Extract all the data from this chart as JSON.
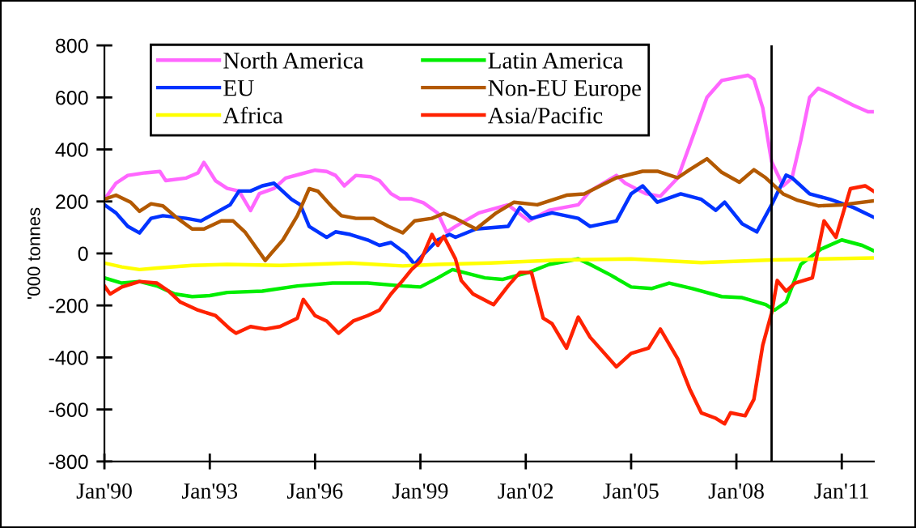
{
  "chart_data": {
    "type": "line",
    "ylabel": "'000 tonnes",
    "xlim": [
      "1990-01",
      "2011-12"
    ],
    "xticks": [
      {
        "value": "1990-01",
        "label": "Jan'90"
      },
      {
        "value": "1993-01",
        "label": "Jan'93"
      },
      {
        "value": "1996-01",
        "label": "Jan'96"
      },
      {
        "value": "1999-01",
        "label": "Jan'99"
      },
      {
        "value": "2002-01",
        "label": "Jan'02"
      },
      {
        "value": "2005-01",
        "label": "Jan'05"
      },
      {
        "value": "2008-01",
        "label": "Jan'08"
      },
      {
        "value": "2011-01",
        "label": "Jan'11"
      }
    ],
    "ylim": [
      -800,
      800
    ],
    "yticks": [
      -800,
      -600,
      -400,
      -200,
      0,
      200,
      400,
      600,
      800
    ],
    "grid": false,
    "legend": "top left",
    "marker": "none",
    "line_style": "solid",
    "ref_lines": [
      {
        "axis": "x",
        "value": "2009-01",
        "color": "#000000"
      }
    ],
    "series": [
      {
        "name": "North America",
        "color": "#ff66ff",
        "x": [
          "1990-01",
          "1990-05",
          "1990-09",
          "1991-03",
          "1991-08",
          "1991-10",
          "1992-05",
          "1992-09",
          "1992-11",
          "1993-03",
          "1993-07",
          "1993-11",
          "1994-03",
          "1994-06",
          "1994-11",
          "1995-03",
          "1995-08",
          "1996-01",
          "1996-05",
          "1996-08",
          "1996-11",
          "1997-03",
          "1997-08",
          "1997-11",
          "1998-03",
          "1998-06",
          "1998-10",
          "1999-02",
          "1999-07",
          "1999-10",
          "2000-01",
          "2000-09",
          "2001-07",
          "2002-02",
          "2002-09",
          "2003-07",
          "2003-11",
          "2004-08",
          "2004-11",
          "2005-06",
          "2005-11",
          "2006-05",
          "2006-09",
          "2007-03",
          "2007-08",
          "2008-05",
          "2008-07",
          "2008-10",
          "2009-01",
          "2009-05",
          "2009-08",
          "2009-11",
          "2010-02",
          "2010-05",
          "2010-09",
          "2011-05",
          "2011-10",
          "2011-12"
        ],
        "values": [
          208,
          270,
          300,
          310,
          315,
          280,
          290,
          310,
          350,
          280,
          250,
          240,
          165,
          230,
          250,
          290,
          305,
          320,
          315,
          300,
          260,
          300,
          295,
          280,
          230,
          210,
          210,
          195,
          155,
          82,
          104,
          156,
          187,
          125,
          166,
          187,
          240,
          300,
          270,
          230,
          220,
          290,
          415,
          600,
          665,
          685,
          670,
          560,
          353,
          260,
          290,
          435,
          600,
          635,
          615,
          570,
          545,
          545
        ]
      },
      {
        "name": "Latin America",
        "color": "#00ee00",
        "x": [
          "1990-01",
          "1990-07",
          "1991-01",
          "1991-07",
          "1992-01",
          "1992-07",
          "1993-01",
          "1993-07",
          "1994-07",
          "1995-07",
          "1996-07",
          "1997-07",
          "1998-07",
          "1999-01",
          "1999-07",
          "1999-12",
          "2000-11",
          "2001-05",
          "2002-02",
          "2002-09",
          "2003-07",
          "2003-11",
          "2004-06",
          "2005-01",
          "2005-08",
          "2006-02",
          "2006-10",
          "2007-08",
          "2008-03",
          "2008-11",
          "2009-02",
          "2009-06",
          "2009-11",
          "2010-06",
          "2011-01",
          "2011-08",
          "2011-12"
        ],
        "values": [
          -94,
          -114,
          -108,
          -125,
          -156,
          -166,
          -162,
          -150,
          -145,
          -125,
          -114,
          -114,
          -125,
          -129,
          -94,
          -62,
          -94,
          -100,
          -73,
          -42,
          -21,
          -42,
          -83,
          -129,
          -135,
          -114,
          -135,
          -166,
          -170,
          -197,
          -218,
          -187,
          -42,
          17,
          52,
          31,
          10
        ]
      },
      {
        "name": "EU",
        "color": "#0033ff",
        "x": [
          "1990-01",
          "1990-05",
          "1990-09",
          "1991-01",
          "1991-05",
          "1991-09",
          "1992-05",
          "1992-10",
          "1993-03",
          "1993-08",
          "1993-11",
          "1994-03",
          "1994-07",
          "1994-11",
          "1995-05",
          "1995-08",
          "1995-11",
          "1996-05",
          "1996-08",
          "1997-01",
          "1997-07",
          "1997-11",
          "1998-03",
          "1998-08",
          "1998-11",
          "1999-02",
          "1999-07",
          "1999-11",
          "2000-01",
          "2000-08",
          "2001-07",
          "2001-11",
          "2002-03",
          "2002-10",
          "2003-07",
          "2003-11",
          "2004-08",
          "2005-01",
          "2005-05",
          "2005-10",
          "2006-06",
          "2007-01",
          "2007-06",
          "2007-09",
          "2008-03",
          "2008-08",
          "2009-01",
          "2009-06",
          "2009-08",
          "2010-02",
          "2010-09",
          "2011-05",
          "2011-12"
        ],
        "values": [
          187,
          156,
          104,
          79,
          135,
          145,
          135,
          125,
          156,
          187,
          240,
          240,
          260,
          270,
          208,
          187,
          104,
          62,
          83,
          73,
          52,
          31,
          42,
          0,
          -42,
          -4,
          52,
          73,
          62,
          94,
          104,
          177,
          135,
          156,
          135,
          104,
          125,
          229,
          260,
          197,
          229,
          208,
          166,
          197,
          114,
          83,
          187,
          301,
          291,
          229,
          208,
          177,
          139
        ]
      },
      {
        "name": "Non-EU Europe",
        "color": "#b35900",
        "x": [
          "1990-01",
          "1990-05",
          "1990-10",
          "1991-01",
          "1991-05",
          "1991-09",
          "1992-02",
          "1992-07",
          "1992-11",
          "1993-05",
          "1993-09",
          "1994-01",
          "1994-05",
          "1994-08",
          "1994-10",
          "1995-02",
          "1995-07",
          "1995-11",
          "1996-02",
          "1996-07",
          "1996-10",
          "1997-03",
          "1997-09",
          "1998-02",
          "1998-07",
          "1998-11",
          "1999-05",
          "1999-09",
          "2000-01",
          "2000-08",
          "2001-03",
          "2001-09",
          "2002-05",
          "2003-03",
          "2003-09",
          "2004-08",
          "2005-05",
          "2005-10",
          "2006-05",
          "2006-09",
          "2007-03",
          "2007-08",
          "2008-02",
          "2008-07",
          "2008-11",
          "2009-05",
          "2009-10",
          "2010-05",
          "2011-01",
          "2011-12"
        ],
        "values": [
          208,
          224,
          197,
          162,
          191,
          183,
          135,
          94,
          94,
          125,
          125,
          83,
          21,
          -27,
          0,
          52,
          145,
          249,
          239,
          177,
          145,
          135,
          135,
          104,
          79,
          125,
          135,
          154,
          135,
          94,
          156,
          197,
          187,
          224,
          229,
          291,
          316,
          316,
          291,
          322,
          364,
          312,
          274,
          322,
          291,
          229,
          204,
          183,
          187,
          202
        ]
      },
      {
        "name": "Africa",
        "color": "#ffff00",
        "x": [
          "1990-01",
          "1990-07",
          "1991-01",
          "1991-07",
          "1992-07",
          "1993-07",
          "1995-01",
          "1997-01",
          "1998-07",
          "1999-07",
          "2001-01",
          "2003-01",
          "2005-01",
          "2007-01",
          "2009-01",
          "2011-12"
        ],
        "values": [
          -37,
          -52,
          -62,
          -56,
          -46,
          -42,
          -46,
          -37,
          -48,
          -42,
          -37,
          -25,
          -21,
          -35,
          -25,
          -17
        ]
      },
      {
        "name": "Asia/Pacific",
        "color": "#ff2200",
        "x": [
          "1990-01",
          "1990-03",
          "1990-07",
          "1991-01",
          "1991-07",
          "1991-11",
          "1992-03",
          "1992-09",
          "1993-03",
          "1993-08",
          "1993-10",
          "1994-03",
          "1994-08",
          "1995-01",
          "1995-07",
          "1995-09",
          "1996-01",
          "1996-05",
          "1996-09",
          "1997-02",
          "1997-07",
          "1997-11",
          "1998-03",
          "1998-07",
          "1998-10",
          "1999-01",
          "1999-05",
          "1999-07",
          "1999-09",
          "2000-01",
          "2000-03",
          "2000-07",
          "2001-02",
          "2001-07",
          "2001-11",
          "2002-03",
          "2002-07",
          "2002-10",
          "2003-03",
          "2003-07",
          "2003-11",
          "2004-08",
          "2005-01",
          "2005-07",
          "2005-11",
          "2006-05",
          "2006-09",
          "2007-01",
          "2007-06",
          "2007-09",
          "2007-11",
          "2008-04",
          "2008-07",
          "2008-10",
          "2009-01",
          "2009-03",
          "2009-06",
          "2009-09",
          "2010-03",
          "2010-07",
          "2010-11",
          "2011-04",
          "2011-09",
          "2011-12"
        ],
        "values": [
          -125,
          -156,
          -129,
          -108,
          -114,
          -145,
          -187,
          -218,
          -239,
          -291,
          -307,
          -281,
          -291,
          -281,
          -249,
          -177,
          -239,
          -260,
          -307,
          -260,
          -239,
          -218,
          -156,
          -104,
          -62,
          -31,
          73,
          31,
          66,
          -21,
          -104,
          -156,
          -197,
          -125,
          -73,
          -73,
          -249,
          -270,
          -364,
          -245,
          -322,
          -436,
          -384,
          -364,
          -291,
          -405,
          -520,
          -613,
          -634,
          -655,
          -613,
          -624,
          -561,
          -353,
          -229,
          -104,
          -145,
          -114,
          -94,
          125,
          62,
          249,
          260,
          239
        ]
      }
    ]
  }
}
